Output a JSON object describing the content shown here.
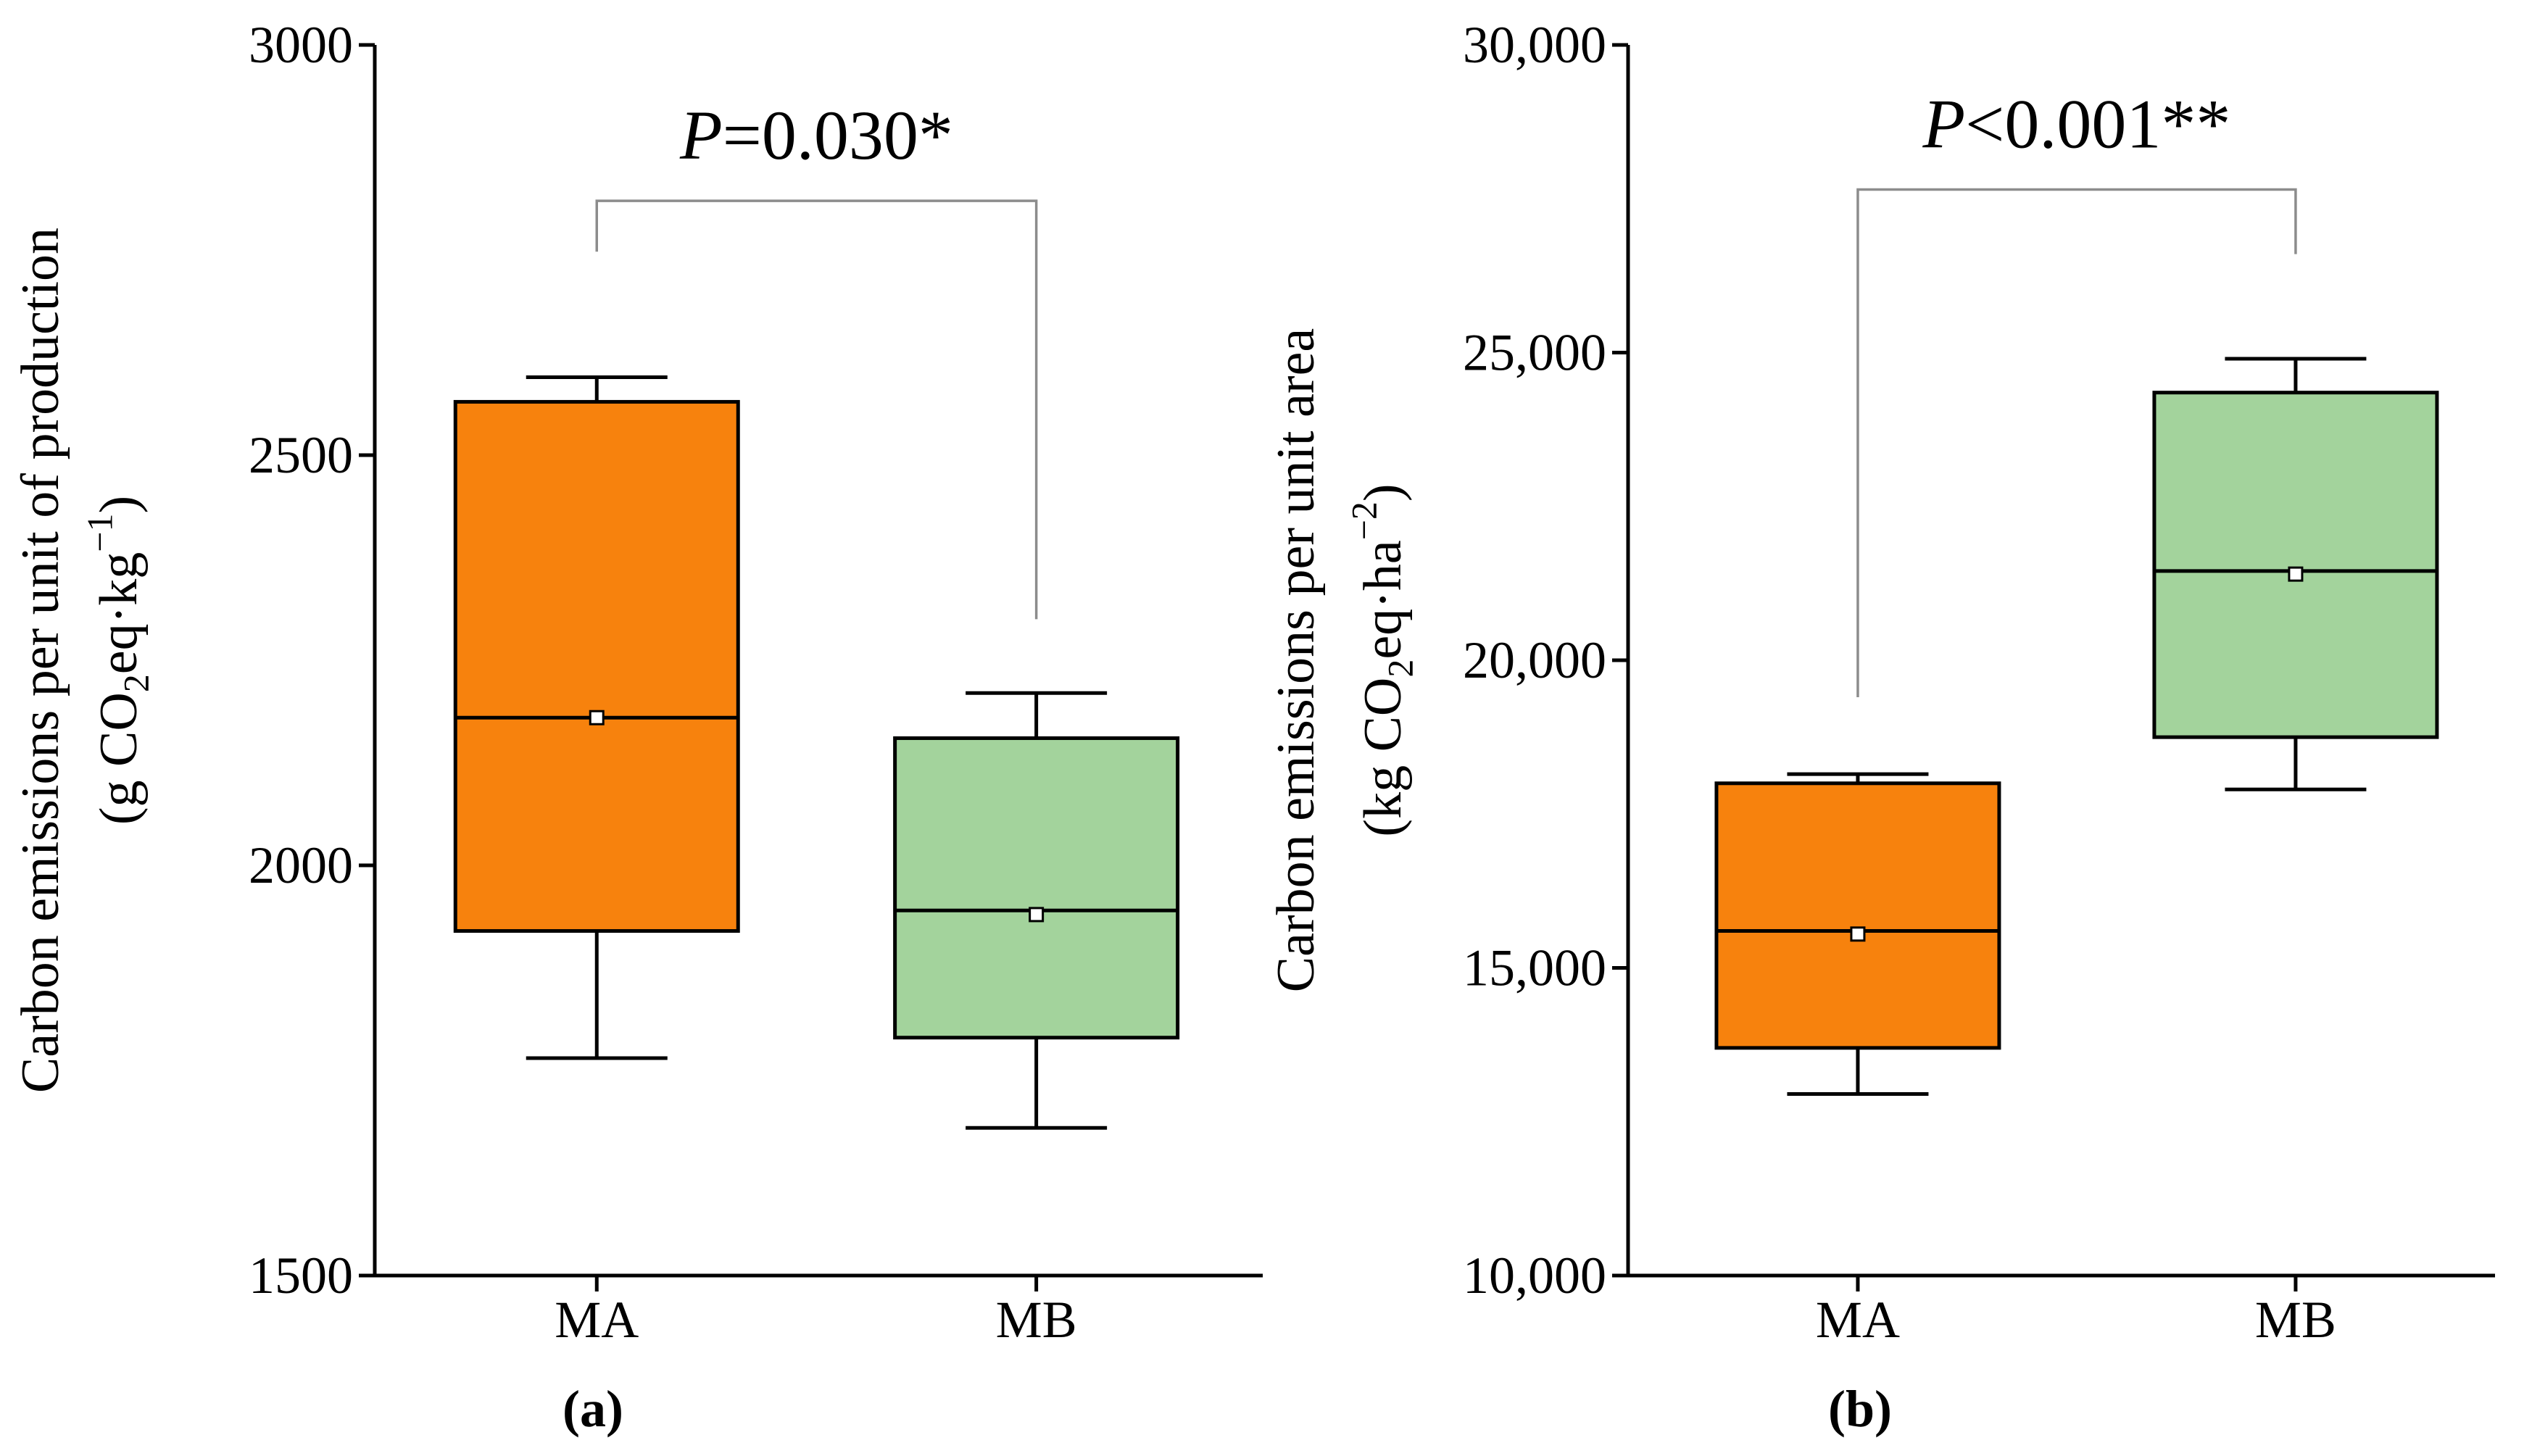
{
  "figure": {
    "background": "#ffffff",
    "box_border_color": "#000000",
    "bracket_color": "#8c8c8c",
    "panel_labels": [
      "(a)",
      "(b)"
    ]
  },
  "chart_data": [
    {
      "type": "box",
      "panel_label": "(a)",
      "ylabel_line1": "Carbon emissions per unit of production",
      "ylabel_line2_plain": "(g CO2eq·kg−1)",
      "ylabel_line2_parts": [
        {
          "text": "(g CO"
        },
        {
          "text": "2",
          "script": "sub"
        },
        {
          "text": "eq·kg",
          "script": ""
        },
        {
          "text": "−1",
          "script": "sup"
        },
        {
          "text": ")",
          "script": ""
        }
      ],
      "ylim": [
        1500,
        3000
      ],
      "yticks": [
        1500,
        2000,
        2500,
        3000
      ],
      "ytick_labels": [
        "1500",
        "2000",
        "2500",
        "3000"
      ],
      "categories": [
        "MA",
        "MB"
      ],
      "series": [
        {
          "name": "MA",
          "color": "#F7820D",
          "whisker_low": 1765,
          "q1": 1920,
          "median": 2180,
          "mean": 2180,
          "q3": 2565,
          "whisker_high": 2595
        },
        {
          "name": "MB",
          "color": "#A3D39C",
          "whisker_low": 1680,
          "q1": 1790,
          "median": 1945,
          "mean": 1940,
          "q3": 2155,
          "whisker_high": 2210
        }
      ],
      "significance": {
        "text": "P=0.030*",
        "italic_part": "P",
        "rest_part": "=0.030*",
        "bar_y": 2810,
        "left_drop_y": 2748,
        "right_drop_y": 2300
      }
    },
    {
      "type": "box",
      "panel_label": "(b)",
      "ylabel_line1": "Carbon emissions per unit area",
      "ylabel_line2_plain": "(kg CO2eq·ha−2)",
      "ylabel_line2_parts": [
        {
          "text": "(kg CO"
        },
        {
          "text": "2",
          "script": "sub"
        },
        {
          "text": "eq·ha",
          "script": ""
        },
        {
          "text": "−2",
          "script": "sup"
        },
        {
          "text": ")",
          "script": ""
        }
      ],
      "ylim": [
        10000,
        30000
      ],
      "yticks": [
        10000,
        15000,
        20000,
        25000,
        30000
      ],
      "ytick_labels": [
        "10,000",
        "15,000",
        "20,000",
        "25,000",
        "30,000"
      ],
      "categories": [
        "MA",
        "MB"
      ],
      "series": [
        {
          "name": "MA",
          "color": "#F7820D",
          "whisker_low": 12950,
          "q1": 13700,
          "median": 15600,
          "mean": 15550,
          "q3": 18000,
          "whisker_high": 18150
        },
        {
          "name": "MB",
          "color": "#A3D39C",
          "whisker_low": 17900,
          "q1": 18750,
          "median": 21450,
          "mean": 21400,
          "q3": 24350,
          "whisker_high": 24900
        }
      ],
      "significance": {
        "text": "P<0.001**",
        "italic_part": "P",
        "rest_part": "<0.001**",
        "bar_y": 27650,
        "left_drop_y": 19400,
        "right_drop_y": 26600
      }
    }
  ]
}
